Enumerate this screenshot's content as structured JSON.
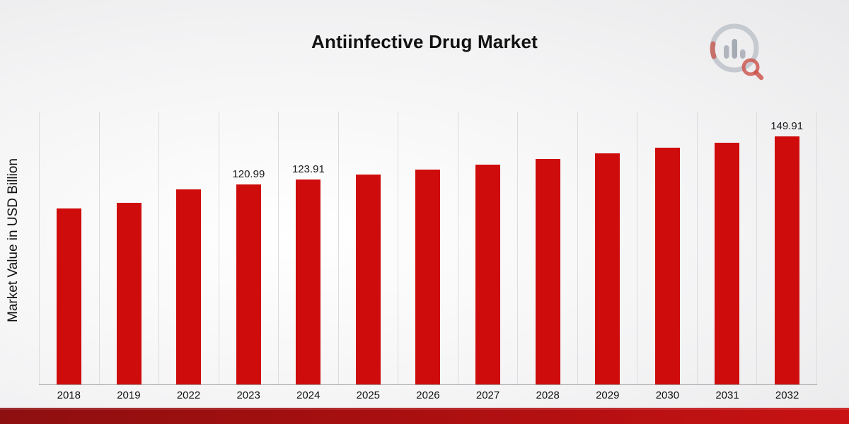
{
  "title": "Antiinfective Drug Market",
  "chart_data": {
    "type": "bar",
    "title": "Antiinfective Drug Market",
    "xlabel": "",
    "ylabel": "Market Value in USD Billion",
    "categories": [
      "2018",
      "2019",
      "2022",
      "2023",
      "2024",
      "2025",
      "2026",
      "2027",
      "2028",
      "2029",
      "2030",
      "2031",
      "2032"
    ],
    "values": [
      106.6,
      109.9,
      118.1,
      120.99,
      123.91,
      126.9,
      129.9,
      133.1,
      136.3,
      139.6,
      143.0,
      146.4,
      149.91
    ],
    "data_labels": [
      "",
      "",
      "",
      "120.99",
      "123.91",
      "",
      "",
      "",
      "",
      "",
      "",
      "",
      "149.91"
    ],
    "units": "USD Billion",
    "bar_color": "#cf0c0c",
    "grid": "vertical",
    "legend": "none",
    "ylim": [
      0,
      165
    ]
  },
  "branding": {
    "logo_name": "market-research-logo"
  }
}
